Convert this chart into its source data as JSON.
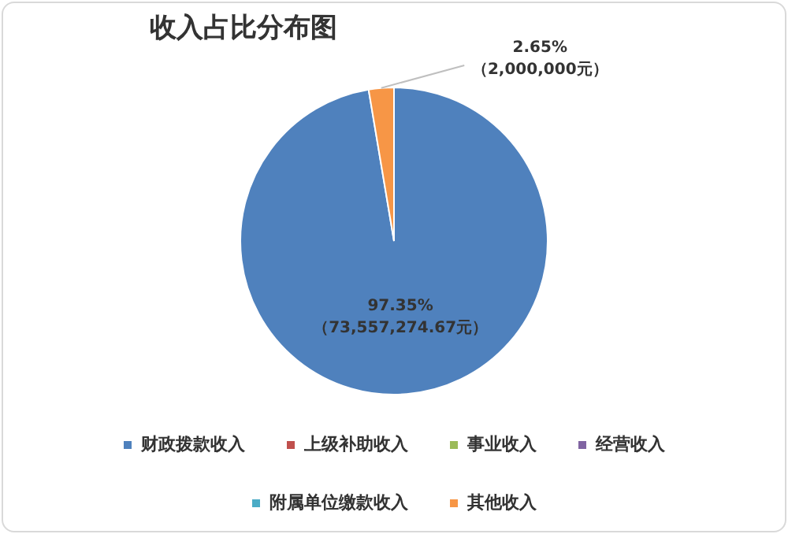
{
  "chart_data": {
    "type": "pie",
    "title": "收入占比分布图",
    "categories": [
      "财政拨款收入",
      "上级补助收入",
      "事业收入",
      "经营收入",
      "附属单位缴款收入",
      "其他收入"
    ],
    "values": [
      73557274.67,
      0,
      0,
      0,
      0,
      2000000
    ],
    "colors": [
      "#4f81bd",
      "#c0504d",
      "#9bbb59",
      "#8064a2",
      "#4bacc6",
      "#f79646"
    ],
    "value_labels": [
      "97.35%\n（73,557,274.67元）",
      null,
      null,
      null,
      null,
      "2.65%\n（2,000,000元）"
    ],
    "legend": "bottom"
  }
}
